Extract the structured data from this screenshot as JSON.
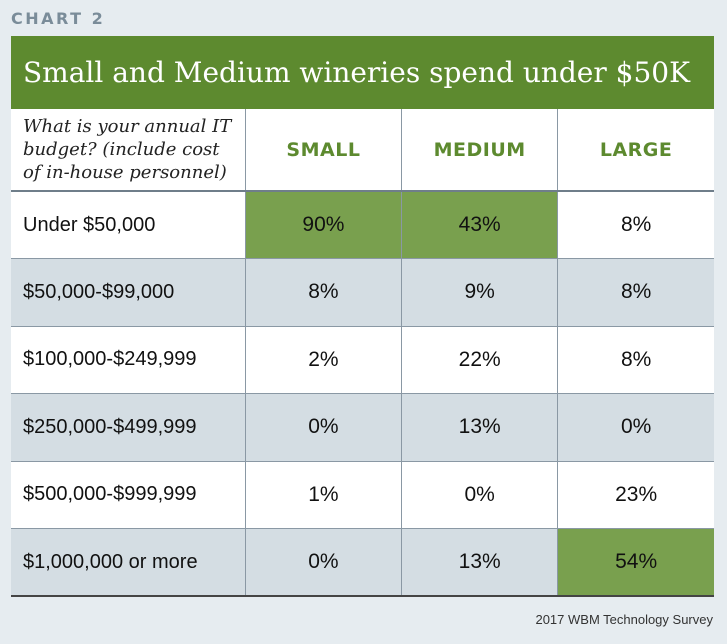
{
  "chart_label": "CHART 2",
  "source": "2017 WBM Technology Survey",
  "colors": {
    "title_bar": "#5d8a2f",
    "highlight": "#79a04e",
    "header_text": "#5d8a2f",
    "alt_row": "#d4dde3"
  },
  "chart_data": {
    "type": "table",
    "title": "Small and Medium wineries spend under $50K",
    "question": "What is your annual IT budget? (include cost of in-house personnel)",
    "question_lines": [
      "What is your annual IT",
      "budget? (include cost",
      "of in-house personnel)"
    ],
    "columns": [
      "SMALL",
      "MEDIUM",
      "LARGE"
    ],
    "rows": [
      {
        "label": "Under $50,000",
        "values": [
          "90%",
          "43%",
          "8%"
        ],
        "highlight": [
          true,
          true,
          false
        ]
      },
      {
        "label": "$50,000-$99,000",
        "values": [
          "8%",
          "9%",
          "8%"
        ],
        "highlight": [
          false,
          false,
          false
        ]
      },
      {
        "label": "$100,000-$249,999",
        "values": [
          "2%",
          "22%",
          "8%"
        ],
        "highlight": [
          false,
          false,
          false
        ]
      },
      {
        "label": "$250,000-$499,999",
        "values": [
          "0%",
          "13%",
          "0%"
        ],
        "highlight": [
          false,
          false,
          false
        ]
      },
      {
        "label": "$500,000-$999,999",
        "values": [
          "1%",
          "0%",
          "23%"
        ],
        "highlight": [
          false,
          false,
          false
        ]
      },
      {
        "label": "$1,000,000 or more",
        "values": [
          "0%",
          "13%",
          "54%"
        ],
        "highlight": [
          false,
          false,
          true
        ]
      }
    ]
  }
}
